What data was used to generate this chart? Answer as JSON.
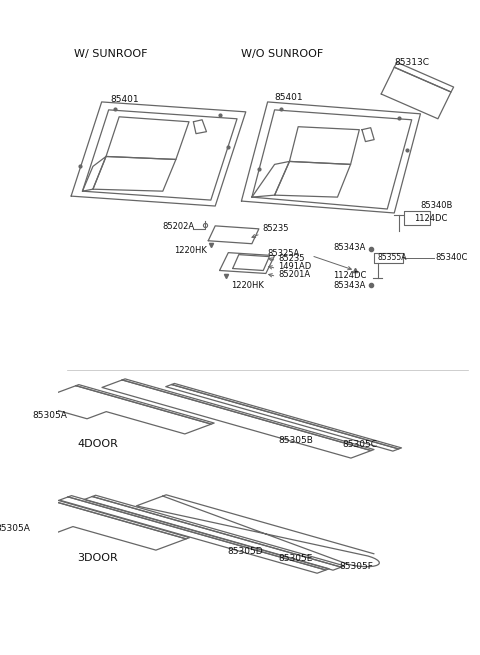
{
  "bg_color": "#ffffff",
  "line_color": "#666666",
  "text_color": "#111111",
  "title_left": "W/ SUNROOF",
  "title_right": "W/O SUNROOF",
  "label_4door": "4DOOR",
  "label_3door": "3DOOR"
}
